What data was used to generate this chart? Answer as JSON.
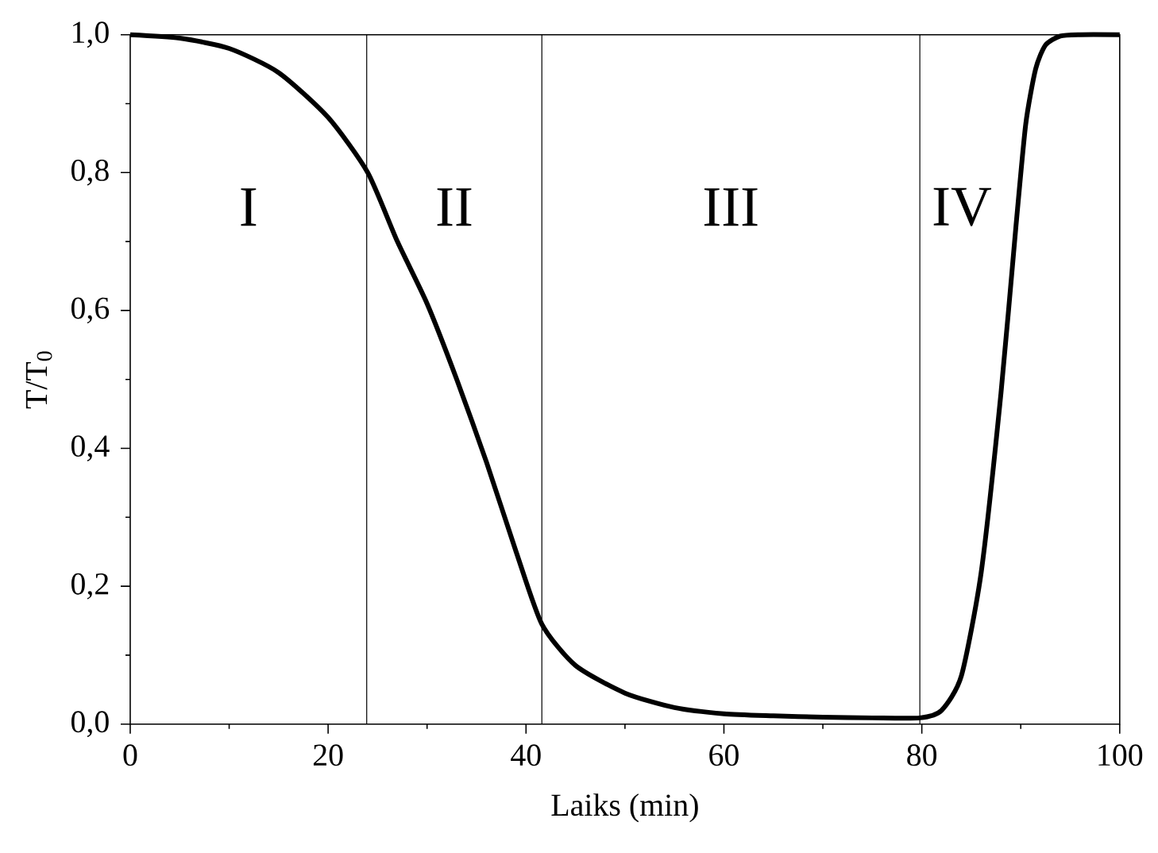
{
  "chart_data": {
    "type": "line",
    "xlabel": "Laiks (min)",
    "ylabel": "T/T$_{0}$",
    "x": [
      0,
      5,
      10,
      15,
      20,
      24,
      27,
      30,
      33,
      36,
      39,
      41.6,
      45,
      50,
      55,
      60,
      65,
      70,
      75,
      79.8,
      82,
      84,
      86,
      88,
      89.5,
      90.5,
      91.5,
      92.5,
      94,
      96,
      100
    ],
    "series": [
      {
        "color": "#000000",
        "values": [
          1.0,
          0.995,
          0.98,
          0.945,
          0.88,
          0.8,
          0.7,
          0.61,
          0.5,
          0.38,
          0.25,
          0.145,
          0.085,
          0.045,
          0.024,
          0.015,
          0.012,
          0.01,
          0.009,
          0.009,
          0.02,
          0.07,
          0.22,
          0.48,
          0.72,
          0.87,
          0.95,
          0.985,
          0.998,
          1.0,
          1.0
        ]
      }
    ],
    "xlim": [
      0,
      100
    ],
    "ylim": [
      0,
      1
    ],
    "xticks": [
      0,
      20,
      40,
      60,
      80,
      100
    ],
    "yticks": [
      {
        "value": 0,
        "label": "0,0"
      },
      {
        "value": 0.2,
        "label": "0,2"
      },
      {
        "value": 0.4,
        "label": "0,4"
      },
      {
        "value": 0.6,
        "label": "0,6"
      },
      {
        "value": 0.8,
        "label": "0,8"
      },
      {
        "value": 1.0,
        "label": "1,0"
      }
    ],
    "ref_lines": [
      {
        "axis": "x",
        "value": 23.9
      },
      {
        "axis": "x",
        "value": 41.6
      },
      {
        "axis": "x",
        "value": 79.8
      }
    ],
    "annotations": [
      "I",
      "II",
      "III",
      "IV"
    ],
    "grid": false,
    "marker": "none",
    "line_style": "solid"
  }
}
